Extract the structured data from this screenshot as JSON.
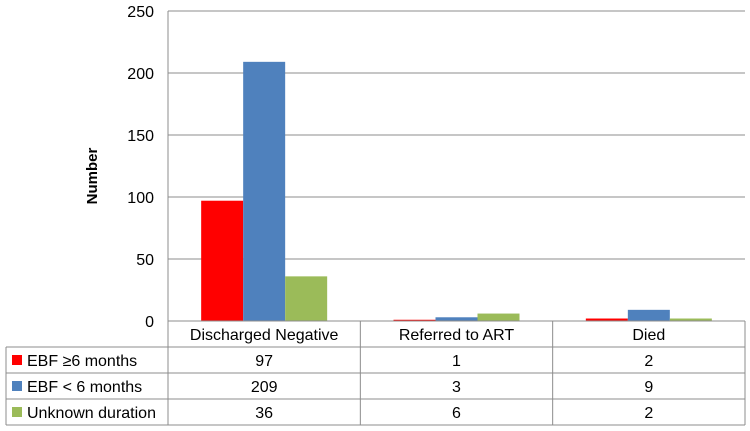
{
  "chart_data": {
    "type": "bar",
    "ylabel": "Number",
    "ylim": [
      0,
      250
    ],
    "yticks": [
      0,
      50,
      100,
      150,
      200,
      250
    ],
    "grid": true,
    "categories": [
      "Discharged Negative",
      "Referred to ART",
      "Died"
    ],
    "series": [
      {
        "name": "EBF ≥6 months",
        "color": "#ff0000",
        "values": [
          97,
          1,
          2
        ]
      },
      {
        "name": "EBF < 6 months",
        "color": "#4f81bd",
        "values": [
          209,
          3,
          9
        ]
      },
      {
        "name": "Unknown duration",
        "color": "#9bbb59",
        "values": [
          36,
          6,
          2
        ]
      }
    ],
    "legend": "data-table-rows"
  },
  "colors": {
    "gridline": "#8c8c8c",
    "axis": "#8c8c8c"
  }
}
